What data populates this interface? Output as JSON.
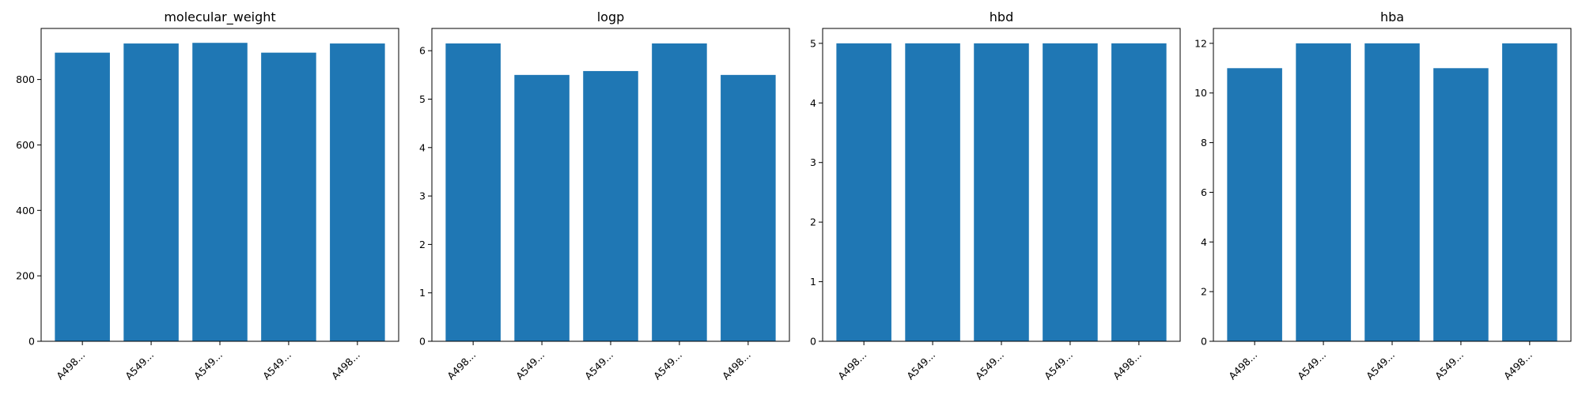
{
  "chart_data": [
    {
      "type": "bar",
      "title": "molecular_weight",
      "categories": [
        "A498...",
        "A549...",
        "A549...",
        "A549...",
        "A498..."
      ],
      "values": [
        882,
        910,
        912,
        882,
        910
      ],
      "ylim": [
        0,
        956
      ],
      "yticks": [
        "0",
        "200",
        "400",
        "600",
        "800"
      ],
      "color": "#1f77b4",
      "grid": false
    },
    {
      "type": "bar",
      "title": "logp",
      "categories": [
        "A498...",
        "A549...",
        "A549...",
        "A549...",
        "A498..."
      ],
      "values": [
        6.15,
        5.5,
        5.58,
        6.15,
        5.5
      ],
      "ylim": [
        0,
        6.46
      ],
      "yticks": [
        "0",
        "1",
        "2",
        "3",
        "4",
        "5",
        "6"
      ],
      "color": "#1f77b4",
      "grid": false
    },
    {
      "type": "bar",
      "title": "hbd",
      "categories": [
        "A498...",
        "A549...",
        "A549...",
        "A549...",
        "A498..."
      ],
      "values": [
        5,
        5,
        5,
        5,
        5
      ],
      "ylim": [
        0,
        5.25
      ],
      "yticks": [
        "0",
        "1",
        "2",
        "3",
        "4",
        "5"
      ],
      "color": "#1f77b4",
      "grid": false
    },
    {
      "type": "bar",
      "title": "hba",
      "categories": [
        "A498...",
        "A549...",
        "A549...",
        "A549...",
        "A498..."
      ],
      "values": [
        11,
        12,
        12,
        11,
        12
      ],
      "ylim": [
        0,
        12.6
      ],
      "yticks": [
        "0",
        "2",
        "4",
        "6",
        "8",
        "10",
        "12"
      ],
      "color": "#1f77b4",
      "grid": false
    }
  ]
}
